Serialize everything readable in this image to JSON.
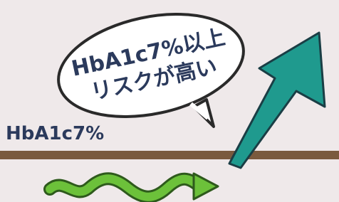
{
  "bubble": {
    "lines": [
      "HbA1c7%以上",
      "リスクが高い"
    ]
  },
  "label": "HbA1c7%"
}
